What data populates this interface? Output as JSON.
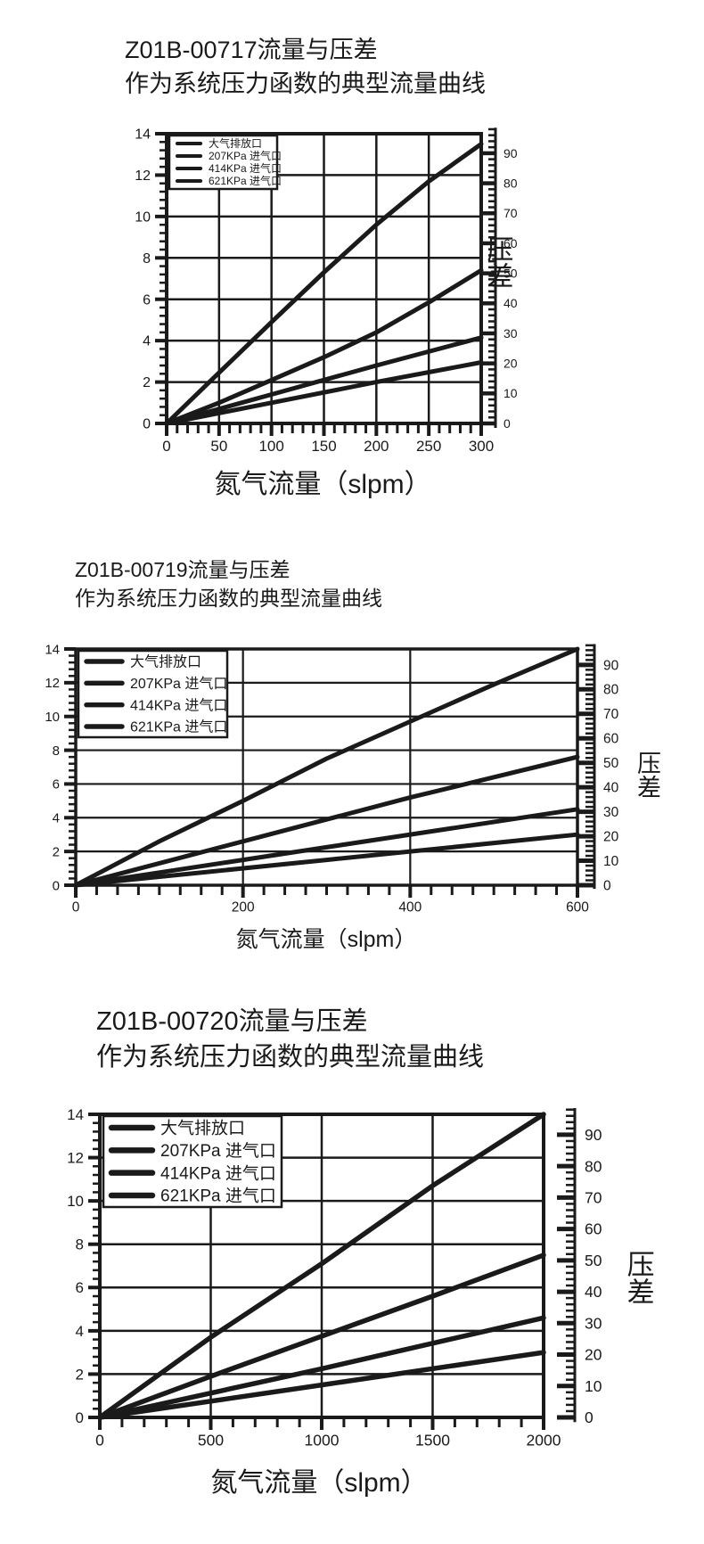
{
  "page": {
    "background": "#ffffff",
    "ink": "#1a1a1a"
  },
  "chart_data": [
    {
      "type": "line",
      "title": "Z01B-00717流量与压差",
      "subtitle": "作为系统压力函数的典型流量曲线",
      "xlabel": "氮气流量（slpm）",
      "right_ylabel": "压差",
      "xlim": [
        0,
        300
      ],
      "ylim": [
        0,
        14
      ],
      "right_ylim": [
        0,
        96.5
      ],
      "x_major_ticks": [
        0,
        50,
        100,
        150,
        200,
        250,
        300
      ],
      "x_minor_step": 10,
      "y_major_ticks": [
        0,
        2,
        4,
        6,
        8,
        10,
        12,
        14
      ],
      "y_minor_step": 0.4,
      "right_major_ticks": [
        0,
        10,
        20,
        30,
        40,
        50,
        60,
        70,
        80,
        90
      ],
      "right_minor_step": 2,
      "grid": true,
      "legend_position": "upper-left",
      "series": [
        {
          "name": "大气排放口",
          "x": [
            0,
            50,
            100,
            150,
            200,
            250,
            300
          ],
          "y": [
            0,
            2.45,
            4.9,
            7.3,
            9.6,
            11.7,
            13.5
          ]
        },
        {
          "name": "207KPa 进气口",
          "x": [
            0,
            50,
            100,
            150,
            200,
            250,
            300
          ],
          "y": [
            0,
            1.0,
            2.1,
            3.2,
            4.4,
            5.85,
            7.4
          ]
        },
        {
          "name": "414KPa 进气口",
          "x": [
            0,
            100,
            200,
            300
          ],
          "y": [
            0,
            1.4,
            2.8,
            4.15
          ]
        },
        {
          "name": "621KPa 进气口",
          "x": [
            0,
            100,
            200,
            300
          ],
          "y": [
            0,
            1.0,
            2.0,
            2.95
          ]
        }
      ]
    },
    {
      "type": "line",
      "title": "Z01B-00719流量与压差",
      "subtitle": "作为系统压力函数的典型流量曲线",
      "xlabel": "氮气流量（slpm）",
      "right_ylabel": "压差",
      "xlim": [
        0,
        600
      ],
      "ylim": [
        0,
        14
      ],
      "right_ylim": [
        0,
        96.5
      ],
      "x_major_ticks": [
        0,
        200,
        400,
        600
      ],
      "x_minor_step": 25,
      "y_major_ticks": [
        0,
        2,
        4,
        6,
        8,
        10,
        12,
        14
      ],
      "y_minor_step": 0.4,
      "right_major_ticks": [
        0,
        10,
        20,
        30,
        40,
        50,
        60,
        70,
        80,
        90
      ],
      "right_minor_step": 2,
      "grid": true,
      "legend_position": "upper-left",
      "series": [
        {
          "name": "大气排放口",
          "x": [
            0,
            100,
            200,
            300,
            400,
            500,
            600
          ],
          "y": [
            0,
            2.6,
            5.0,
            7.5,
            9.7,
            11.9,
            14
          ]
        },
        {
          "name": "207KPa 进气口",
          "x": [
            0,
            200,
            400,
            600
          ],
          "y": [
            0,
            2.6,
            5.2,
            7.6
          ]
        },
        {
          "name": "414KPa 进气口",
          "x": [
            0,
            300,
            600
          ],
          "y": [
            0,
            2.25,
            4.5
          ]
        },
        {
          "name": "621KPa 进气口",
          "x": [
            0,
            300,
            600
          ],
          "y": [
            0,
            1.5,
            3.0
          ]
        }
      ]
    },
    {
      "type": "line",
      "title": "Z01B-00720流量与压差",
      "subtitle": "作为系统压力函数的典型流量曲线",
      "xlabel": "氮气流量（slpm）",
      "right_ylabel": "压差",
      "xlim": [
        0,
        2000
      ],
      "ylim": [
        0,
        14
      ],
      "right_ylim": [
        0,
        96.5
      ],
      "x_major_ticks": [
        0,
        500,
        1000,
        1500,
        2000
      ],
      "x_minor_step": 100,
      "y_major_ticks": [
        0,
        2,
        4,
        6,
        8,
        10,
        12,
        14
      ],
      "y_minor_step": 0.4,
      "right_major_ticks": [
        0,
        10,
        20,
        30,
        40,
        50,
        60,
        70,
        80,
        90
      ],
      "right_minor_step": 2,
      "grid": true,
      "legend_position": "upper-left",
      "series": [
        {
          "name": "大气排放口",
          "x": [
            0,
            500,
            1000,
            1500,
            2000
          ],
          "y": [
            0,
            3.7,
            7.1,
            10.7,
            14
          ]
        },
        {
          "name": "207KPa 进气口",
          "x": [
            0,
            500,
            1000,
            1500,
            2000
          ],
          "y": [
            0,
            1.9,
            3.75,
            5.6,
            7.5
          ]
        },
        {
          "name": "414KPa 进气口",
          "x": [
            0,
            1000,
            2000
          ],
          "y": [
            0,
            2.25,
            4.6
          ]
        },
        {
          "name": "621KPa 进气口",
          "x": [
            0,
            1000,
            2000
          ],
          "y": [
            0,
            1.5,
            3.0
          ]
        }
      ]
    }
  ]
}
